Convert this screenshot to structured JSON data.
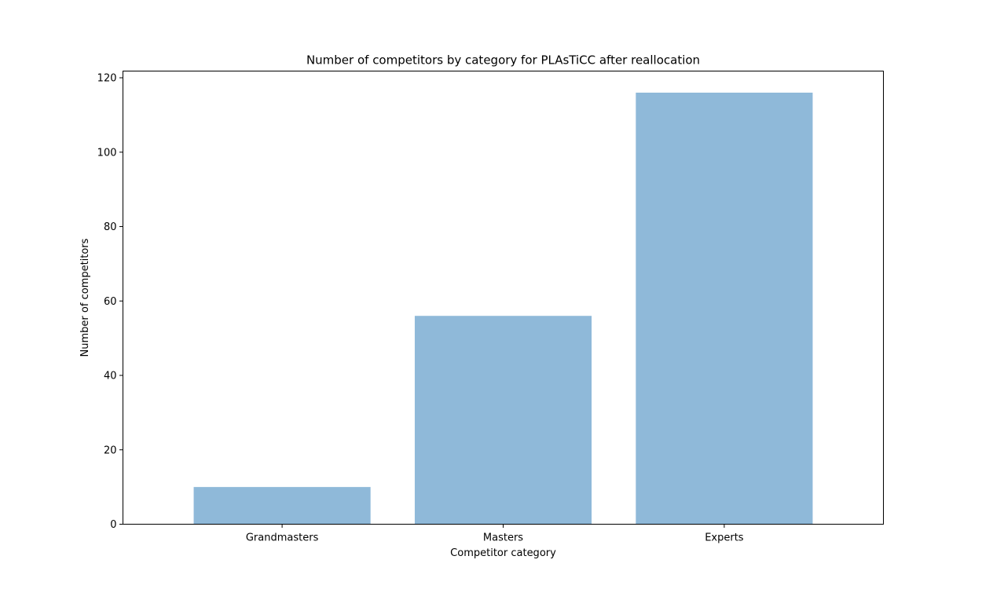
{
  "chart_data": {
    "type": "bar",
    "title": "Number of competitors by category for PLAsTiCC  after reallocation",
    "xlabel": "Competitor category",
    "ylabel": "Number of competitors",
    "categories": [
      "Grandmasters",
      "Masters",
      "Experts"
    ],
    "values": [
      10,
      56,
      116
    ],
    "ylim": [
      0,
      121.8
    ],
    "yticks": [
      "0",
      "20",
      "40",
      "60",
      "80",
      "100",
      "120"
    ],
    "grid": false,
    "legend": "none",
    "bar_color": "#8fb9d9"
  }
}
